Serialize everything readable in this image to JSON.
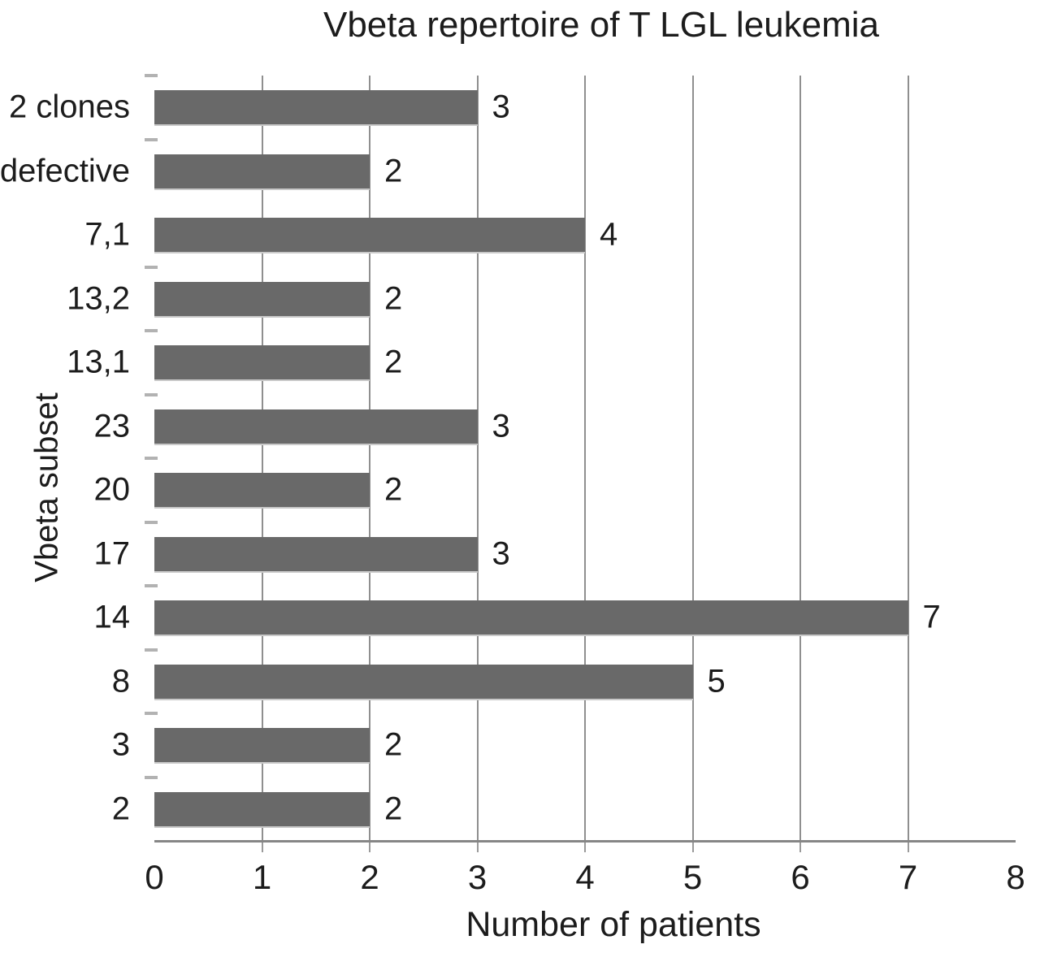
{
  "figure": {
    "background_color": "#ffffff",
    "text_color": "#1c1c1c"
  },
  "chart_data": {
    "type": "bar",
    "orientation": "horizontal",
    "title": "Vbeta repertoire of T LGL leukemia",
    "xlabel": "Number of patients",
    "ylabel": "Vbeta subset",
    "categories_top_to_bottom": [
      "2 clones",
      "defective",
      "7,1",
      "13,2",
      "13,1",
      "23",
      "20",
      "17",
      "14",
      "8",
      "3",
      "2"
    ],
    "values": [
      3,
      2,
      4,
      2,
      2,
      3,
      2,
      3,
      7,
      5,
      2,
      2
    ],
    "value_labels_shown": true,
    "xlim": [
      0,
      8
    ],
    "xticks": [
      0,
      1,
      2,
      3,
      4,
      5,
      6,
      7,
      8
    ],
    "gridlines_at": [
      1,
      2,
      3,
      4,
      5,
      6,
      7
    ],
    "y_boundary_tick_skipped_above_category": "7,1",
    "legend": "none",
    "bar_color": "#696969",
    "gridline_color": "#8f8f8f",
    "axis_line_color": "#868686",
    "y_boundary_tick_color": "#b2b2b2"
  }
}
